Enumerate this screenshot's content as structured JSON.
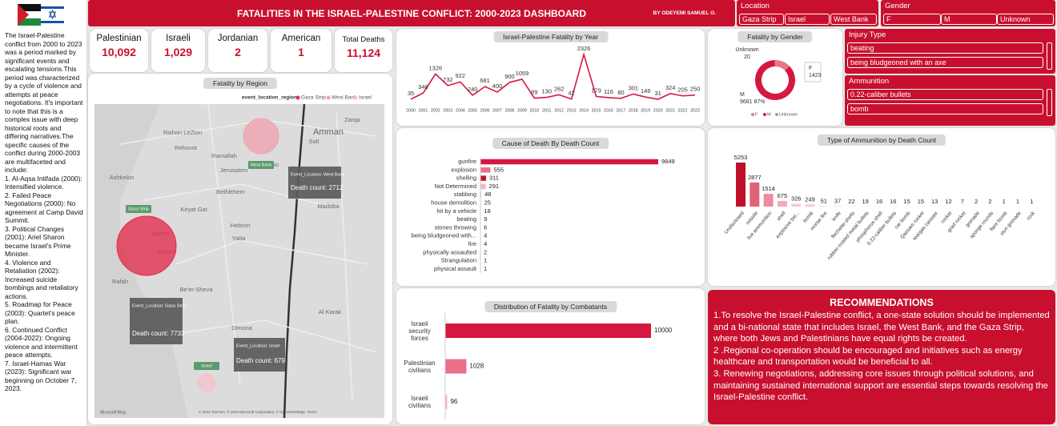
{
  "header": {
    "title": "FATALITIES IN THE ISRAEL-PALESTINE CONFLICT: 2000-2023 DASHBOARD",
    "author": "BY ODEYEMI SAMUEL O."
  },
  "slicers": {
    "location": {
      "title": "Location",
      "items": [
        "Gaza Strip",
        "Israel",
        "West Bank"
      ]
    },
    "gender": {
      "title": "Gender",
      "items": [
        "F",
        "M",
        "Unknown"
      ]
    },
    "injury": {
      "title": "Injury Type",
      "items": [
        "beating",
        "being bludgeoned with an axe"
      ]
    },
    "ammunition": {
      "title": "Ammunition",
      "items": [
        "0.22-caliber bullets",
        "bomb"
      ]
    }
  },
  "sidebar": [
    "The Israel-Palestine conflict from 2000 to 2023 was a period marked by significant events and escalating tensions.This period was characterized by a cycle of violence and attempts at peace negotiations. It's important to note that this is a complex issue with deep historical roots and differing narratives.The specific causes of the conflict during 2000-2003 are multifaceted and include:",
    "1. Al-Aqsa Intifada (2000): Intensified violence.",
    "2. Failed Peace Negotiations (2000): No agreement at Camp David Summit.",
    "3. Political Changes (2001): Ariel Sharon became Israel's Prime Minister.",
    "4. Violence and Retaliation (2002): Increased suicide bombings and retaliatory actions.",
    "5. Roadmap for Peace (2003): Quartet's peace plan.",
    "6. Continued Conflict (2004-2022): Ongoing violence and intermittent peace attempts.",
    "7. Israel-Hamas War (2023): Significant war beginning on October 7, 2023."
  ],
  "kpis": [
    {
      "label": "Palestinian",
      "value": "10,092"
    },
    {
      "label": "Israeli",
      "value": "1,029"
    },
    {
      "label": "Jordanian",
      "value": "2"
    },
    {
      "label": "American",
      "value": "1"
    },
    {
      "label": "Total Deaths",
      "value": "11,124"
    }
  ],
  "map_labels": [
    "Amman",
    "Ramallah",
    "Jerusalem",
    "Hebron",
    "Ashkelon",
    "Rafah",
    "Be'er-Sheva",
    "Dimona",
    "Netivot",
    "Sderot",
    "Yatta",
    "Madaba",
    "Al Karak",
    "Salt",
    "Zarqa",
    "Rehovot",
    "Rishon LeZion",
    "Kiryat Gat",
    "Bethlehem",
    "Jericho"
  ],
  "map_footer": [
    "Microsoft Bing",
    "© 2024 TomTom, © 2024 Microsoft Corporation, © OpenStreetMap, Terms"
  ],
  "recommendations": {
    "title": "RECOMMENDATIONS",
    "items": [
      "1.To resolve the Israel-Palestine conflict, a one-state solution should be implemented and a bi-national state that includes Israel, the West Bank, and the Gaza Strip, where both Jews and Palestinians have equal rights be created.",
      "2 .Regional co-operation should be encouraged and initiatives such as energy healthcare and transportation would be beneficial to all.",
      "3. Renewing negotiations, addressing core issues through political solutions, and maintaining sustained international support are essential steps towards resolving the Israel-Palestine conflict."
    ]
  },
  "chart_data": [
    {
      "type": "map",
      "title": "Fatality by Region",
      "legend_title": "event_location_region",
      "categories": [
        "Gaza Strip",
        "West Bank",
        "Israel"
      ],
      "values": [
        7733,
        2712,
        679
      ],
      "tooltip_titles": [
        "Event_Location: Gaza Strip",
        "Event_Location: West Bank",
        "Event_Location: Israel"
      ],
      "value_labels": [
        "Death count: 7733",
        "Death count: 2712",
        "Death count: 679"
      ],
      "colors": [
        "#e2304f",
        "#f0a2b0",
        "#f5c2cb"
      ]
    },
    {
      "type": "line",
      "title": "Israel-Palestine Fatality by Year",
      "x": [
        2000,
        2001,
        2002,
        2003,
        2004,
        2005,
        2006,
        2007,
        2008,
        2009,
        2010,
        2011,
        2012,
        2013,
        2014,
        2015,
        2016,
        2017,
        2018,
        2019,
        2020,
        2021,
        2022,
        2023
      ],
      "values": [
        35,
        348,
        1326,
        732,
        922,
        240,
        681,
        400,
        900,
        1059,
        89,
        130,
        262,
        42,
        2326,
        179,
        116,
        80,
        301,
        146,
        31,
        324,
        205,
        250
      ],
      "color": "#d6173f"
    },
    {
      "type": "pie",
      "title": "Fatality by Gender",
      "categories": [
        "F",
        "M",
        "Unknown"
      ],
      "values": [
        1423,
        9681,
        20
      ],
      "value_labels": [
        "1423",
        "9681 87%",
        "20"
      ],
      "colors": [
        "#e8758a",
        "#d6173f",
        "#9e9e9e"
      ]
    },
    {
      "type": "hbar",
      "title": "Cause of Death By Death Count",
      "categories": [
        "gunfire",
        "explosion",
        "shelling",
        "Not Determined",
        "stabbing",
        "house demolition",
        "hit by a vehicle",
        "beating",
        "stones throwing",
        "being bludgeoned with...",
        "fire",
        "physically assaulted",
        "Strangulation",
        "physical assault"
      ],
      "values": [
        9849,
        555,
        311,
        291,
        48,
        25,
        18,
        9,
        6,
        4,
        4,
        2,
        1,
        1
      ],
      "colors": [
        "#d6173f",
        "#ec6f88",
        "#c8102e",
        "#f4b6c4",
        "#f4b6c4",
        "#f4b6c4",
        "#f4b6c4",
        "#f4b6c4",
        "#f4b6c4",
        "#f4b6c4",
        "#f4b6c4",
        "#f4b6c4",
        "#f4b6c4",
        "#f4b6c4"
      ]
    },
    {
      "type": "bar",
      "title": "Type of Ammunition by Death Count",
      "categories": [
        "Undisclosed",
        "missile",
        "live ammunition",
        "shell",
        "explosive bel...",
        "bomb",
        "mortar fire",
        "knife",
        "flechette shells",
        "rubber-coated metal bullets",
        "phosphorus shell",
        "0.22-caliber bullets",
        "car bomb",
        "Qassam rocket",
        "teargas canister",
        "rocket",
        "grad rocket",
        "grenade",
        "sponge rounds",
        "flare bomb",
        "stun grenade",
        "rock"
      ],
      "values": [
        5253,
        2877,
        1514,
        675,
        326,
        249,
        51,
        37,
        22,
        19,
        16,
        16,
        15,
        15,
        13,
        12,
        7,
        2,
        2,
        1,
        1,
        1
      ],
      "colors": [
        "#c0102c",
        "#e06377",
        "#f08aa0",
        "#f4a8b8",
        "#f7c6d0",
        "#f7c6d0",
        "#f7c6d0",
        "#f7c6d0",
        "#f7c6d0",
        "#f7c6d0",
        "#f7c6d0",
        "#f7c6d0",
        "#f7c6d0",
        "#f7c6d0",
        "#f7c6d0",
        "#f7c6d0",
        "#f7c6d0",
        "#f7c6d0",
        "#f7c6d0",
        "#f7c6d0",
        "#f7c6d0",
        "#f7c6d0"
      ]
    },
    {
      "type": "hbar",
      "title": "Distribution of  Fatality by Combatants",
      "categories": [
        "Israeli security forces",
        "Palestinian civilians",
        "Israeli civilians"
      ],
      "values": [
        10000,
        1028,
        96
      ],
      "colors": [
        "#d6173f",
        "#ec6f88",
        "#f4b6c4"
      ]
    }
  ]
}
